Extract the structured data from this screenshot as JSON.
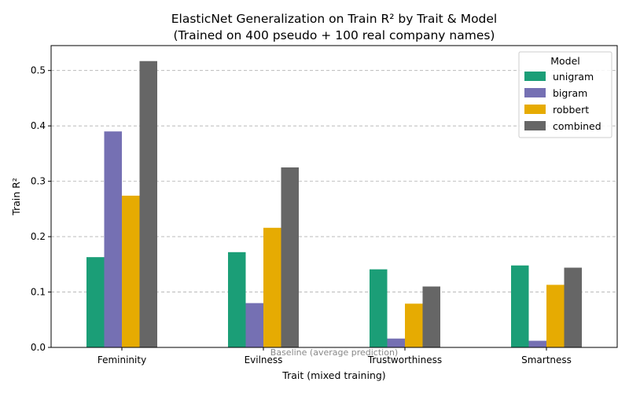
{
  "chart_data": {
    "type": "bar",
    "title_line1": "ElasticNet Generalization on Train R² by Trait & Model",
    "title_line2": "(Trained on 400 pseudo + 100 real company names)",
    "xlabel": "Trait (mixed training)",
    "ylabel": "Train R²",
    "ylim": [
      0,
      0.545
    ],
    "yticks": [
      0.0,
      0.1,
      0.2,
      0.3,
      0.4,
      0.5
    ],
    "ytick_labels": [
      "0.0",
      "0.1",
      "0.2",
      "0.3",
      "0.4",
      "0.5"
    ],
    "grid": "y-dashed",
    "categories": [
      "Femininity",
      "Evilness",
      "Trustworthiness",
      "Smartness"
    ],
    "series": [
      {
        "name": "unigram",
        "color": "#1b9e77",
        "values": [
          0.163,
          0.172,
          0.141,
          0.148
        ]
      },
      {
        "name": "bigram",
        "color": "#7570b3",
        "values": [
          0.39,
          0.08,
          0.016,
          0.012
        ]
      },
      {
        "name": "robbert",
        "color": "#e6ab02",
        "values": [
          0.274,
          0.216,
          0.079,
          0.113
        ]
      },
      {
        "name": "combined",
        "color": "#666666",
        "values": [
          0.517,
          0.325,
          0.11,
          0.144
        ]
      }
    ],
    "legend": {
      "title": "Model",
      "placement": "top-right"
    },
    "annotation": "Baseline (average prediction)"
  }
}
